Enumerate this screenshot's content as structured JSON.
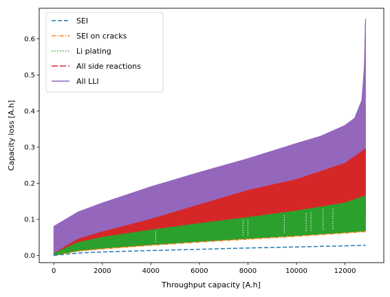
{
  "chart_data": {
    "type": "line",
    "xlabel": "Throughput capacity [A.h]",
    "ylabel": "Capacity loss [A.h]",
    "xlim": [
      -600,
      13600
    ],
    "ylim": [
      -0.02,
      0.685
    ],
    "xticks": [
      0,
      2000,
      4000,
      6000,
      8000,
      10000,
      12000
    ],
    "yticks": [
      0.0,
      0.1,
      0.2,
      0.3,
      0.4,
      0.5,
      0.6
    ],
    "xtick_labels": [
      "0",
      "2000",
      "4000",
      "6000",
      "8000",
      "10000",
      "12000"
    ],
    "ytick_labels": [
      "0.0",
      "0.1",
      "0.2",
      "0.3",
      "0.4",
      "0.5",
      "0.6"
    ],
    "grid": false,
    "legend_position": "top-left",
    "series": [
      {
        "name": "SEI",
        "color": "#1f77b4",
        "style": "dashed",
        "render": "line",
        "x": [
          0,
          1000,
          2000,
          4000,
          6000,
          8000,
          10000,
          12000,
          12850
        ],
        "y": [
          0.0,
          0.0065,
          0.0095,
          0.0135,
          0.017,
          0.0205,
          0.0235,
          0.0265,
          0.028
        ]
      },
      {
        "name": "SEI on cracks",
        "color": "#ff7f0e",
        "style": "dashdot",
        "render": "line",
        "x": [
          0,
          1000,
          2000,
          4000,
          6000,
          8000,
          10000,
          12000,
          12850
        ],
        "y": [
          0.0,
          0.012,
          0.018,
          0.028,
          0.037,
          0.045,
          0.053,
          0.062,
          0.066
        ]
      },
      {
        "name": "Li plating",
        "color": "#2ca02c",
        "style": "dotted",
        "render": "band",
        "x": [
          0,
          1000,
          2000,
          4000,
          6000,
          8000,
          10000,
          12000,
          12850
        ],
        "y_lower": [
          0.0,
          0.013,
          0.02,
          0.03,
          0.039,
          0.047,
          0.055,
          0.064,
          0.068
        ],
        "y_upper": [
          0.005,
          0.035,
          0.05,
          0.07,
          0.088,
          0.105,
          0.123,
          0.145,
          0.165
        ]
      },
      {
        "name": "All side reactions",
        "color": "#d62728",
        "style": "longdash",
        "render": "band",
        "x": [
          0,
          1000,
          2000,
          4000,
          6000,
          8000,
          10000,
          12000,
          12850
        ],
        "y_lower": [
          0.0,
          0.026,
          0.038,
          0.055,
          0.068,
          0.08,
          0.092,
          0.105,
          0.11
        ],
        "y_upper": [
          0.005,
          0.045,
          0.065,
          0.1,
          0.14,
          0.18,
          0.21,
          0.255,
          0.295
        ]
      },
      {
        "name": "All LLI",
        "color": "#9467bd",
        "style": "solid",
        "render": "band",
        "x": [
          0,
          1000,
          2000,
          4000,
          6000,
          8000,
          10000,
          11000,
          12000,
          12400,
          12700,
          12800,
          12850
        ],
        "y_lower": [
          0.0,
          0.046,
          0.066,
          0.095,
          0.126,
          0.16,
          0.195,
          0.21,
          0.235,
          0.25,
          0.265,
          0.28,
          0.295
        ],
        "y_upper": [
          0.08,
          0.12,
          0.145,
          0.19,
          0.23,
          0.268,
          0.31,
          0.33,
          0.36,
          0.38,
          0.43,
          0.52,
          0.655
        ]
      }
    ]
  }
}
